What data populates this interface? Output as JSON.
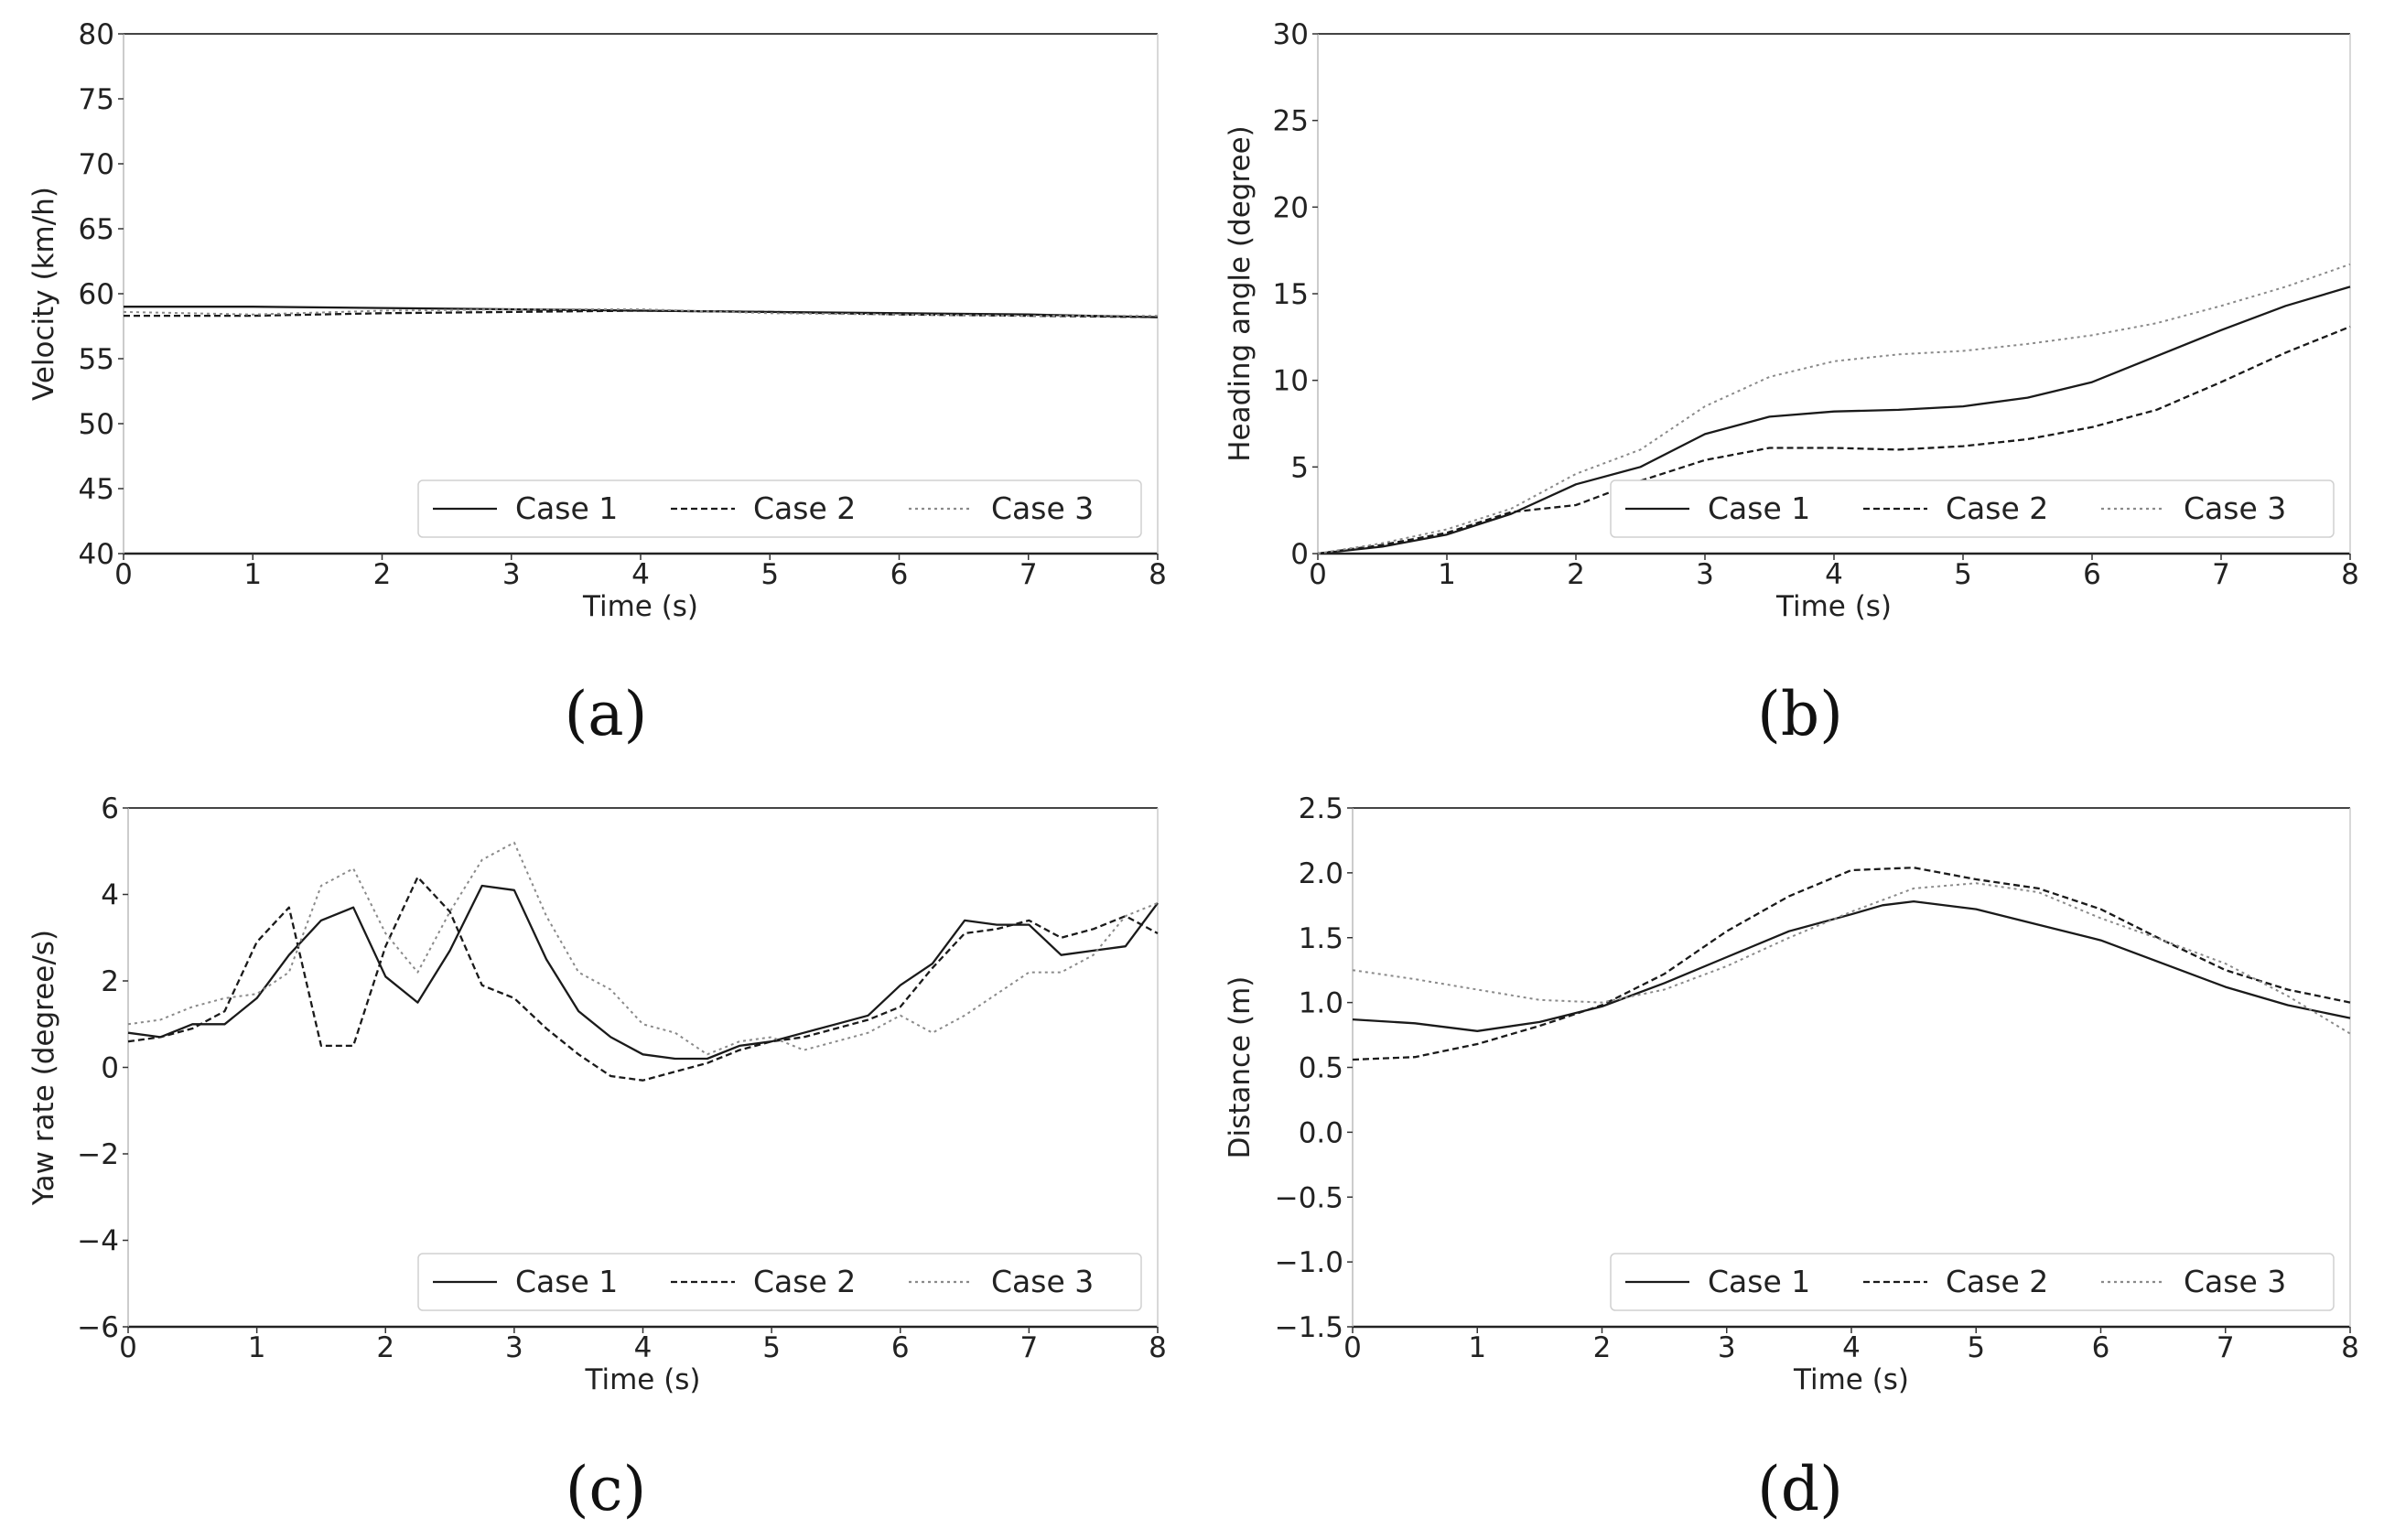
{
  "style": {
    "series_colors": [
      "#1a1a1a",
      "#1a1a1a",
      "#8a8a8a"
    ],
    "series_dashes": [
      "",
      "7,4",
      "3,4"
    ],
    "axis_color": "#333333",
    "grid": false
  },
  "chart_data": [
    {
      "id": "a",
      "caption": "(a)",
      "type": "line",
      "xlabel": "Time (s)",
      "ylabel": "Velocity (km/h)",
      "xlim": [
        0,
        8
      ],
      "ylim": [
        40,
        80
      ],
      "xticks": [
        0,
        1,
        2,
        3,
        4,
        5,
        6,
        7,
        8
      ],
      "yticks": [
        40,
        45,
        50,
        55,
        60,
        65,
        70,
        75,
        80
      ],
      "legend_position": "lower-right",
      "series": [
        {
          "name": "Case 1",
          "x": [
            0,
            1,
            2,
            3,
            4,
            5,
            6,
            7,
            8
          ],
          "values": [
            59.0,
            59.0,
            58.9,
            58.8,
            58.7,
            58.6,
            58.5,
            58.4,
            58.2
          ]
        },
        {
          "name": "Case 2",
          "x": [
            0,
            1,
            2,
            3,
            4,
            5,
            6,
            7,
            8
          ],
          "values": [
            58.3,
            58.3,
            58.5,
            58.6,
            58.7,
            58.6,
            58.4,
            58.3,
            58.2
          ]
        },
        {
          "name": "Case 3",
          "x": [
            0,
            1,
            2,
            3,
            4,
            5,
            6,
            7,
            8
          ],
          "values": [
            58.6,
            58.4,
            58.7,
            58.8,
            58.8,
            58.5,
            58.4,
            58.3,
            58.3
          ]
        }
      ]
    },
    {
      "id": "b",
      "caption": "(b)",
      "type": "line",
      "xlabel": "Time (s)",
      "ylabel": "Heading angle (degree)",
      "xlim": [
        0,
        8
      ],
      "ylim": [
        0,
        30
      ],
      "xticks": [
        0,
        1,
        2,
        3,
        4,
        5,
        6,
        7,
        8
      ],
      "yticks": [
        0,
        5,
        10,
        15,
        20,
        25,
        30
      ],
      "legend_position": "lower-right",
      "series": [
        {
          "name": "Case 1",
          "x": [
            0,
            0.5,
            1,
            1.5,
            2,
            2.5,
            3,
            3.5,
            4,
            4.5,
            5,
            5.5,
            6,
            6.5,
            7,
            7.5,
            8
          ],
          "values": [
            0,
            0.4,
            1.1,
            2.3,
            4.0,
            5.0,
            6.9,
            7.9,
            8.2,
            8.3,
            8.5,
            9.0,
            9.9,
            11.4,
            12.9,
            14.3,
            15.4
          ]
        },
        {
          "name": "Case 2",
          "x": [
            0,
            0.5,
            1,
            1.5,
            2,
            2.5,
            3,
            3.5,
            4,
            4.5,
            5,
            5.5,
            6,
            6.5,
            7,
            7.5,
            8
          ],
          "values": [
            0,
            0.5,
            1.2,
            2.4,
            2.8,
            4.2,
            5.4,
            6.1,
            6.1,
            6.0,
            6.2,
            6.6,
            7.3,
            8.3,
            9.9,
            11.6,
            13.1
          ]
        },
        {
          "name": "Case 3",
          "x": [
            0,
            0.5,
            1,
            1.5,
            2,
            2.5,
            3,
            3.5,
            4,
            4.5,
            5,
            5.5,
            6,
            6.5,
            7,
            7.5,
            8
          ],
          "values": [
            0,
            0.6,
            1.4,
            2.6,
            4.6,
            6.0,
            8.5,
            10.2,
            11.1,
            11.5,
            11.7,
            12.1,
            12.6,
            13.3,
            14.3,
            15.4,
            16.7
          ]
        }
      ]
    },
    {
      "id": "c",
      "caption": "(c)",
      "type": "line",
      "xlabel": "Time (s)",
      "ylabel": "Yaw rate (degree/s)",
      "xlim": [
        0,
        8
      ],
      "ylim": [
        -6,
        6
      ],
      "xticks": [
        0,
        1,
        2,
        3,
        4,
        5,
        6,
        7,
        8
      ],
      "ytick_labels": [
        "−6",
        "−4",
        "−2",
        "0",
        "2",
        "4",
        "6"
      ],
      "yticks": [
        -6,
        -4,
        -2,
        0,
        2,
        4,
        6
      ],
      "legend_position": "lower-right",
      "series": [
        {
          "name": "Case 1",
          "x": [
            0,
            0.25,
            0.5,
            0.75,
            1,
            1.25,
            1.5,
            1.75,
            2,
            2.25,
            2.5,
            2.75,
            3,
            3.25,
            3.5,
            3.75,
            4,
            4.25,
            4.5,
            4.75,
            5,
            5.25,
            5.5,
            5.75,
            6,
            6.25,
            6.5,
            6.75,
            7,
            7.25,
            7.5,
            7.75,
            8
          ],
          "values": [
            0.8,
            0.7,
            1.0,
            1.0,
            1.6,
            2.6,
            3.4,
            3.7,
            2.1,
            1.5,
            2.7,
            4.2,
            4.1,
            2.5,
            1.3,
            0.7,
            0.3,
            0.2,
            0.2,
            0.5,
            0.6,
            0.8,
            1.0,
            1.2,
            1.9,
            2.4,
            3.4,
            3.3,
            3.3,
            2.6,
            2.7,
            2.8,
            3.8
          ]
        },
        {
          "name": "Case 2",
          "x": [
            0,
            0.25,
            0.5,
            0.75,
            1,
            1.25,
            1.5,
            1.75,
            2,
            2.25,
            2.5,
            2.75,
            3,
            3.25,
            3.5,
            3.75,
            4,
            4.25,
            4.5,
            4.75,
            5,
            5.25,
            5.5,
            5.75,
            6,
            6.25,
            6.5,
            6.75,
            7,
            7.25,
            7.5,
            7.75,
            8
          ],
          "values": [
            0.6,
            0.7,
            0.9,
            1.3,
            2.9,
            3.7,
            0.5,
            0.5,
            2.8,
            4.4,
            3.6,
            1.9,
            1.6,
            0.9,
            0.3,
            -0.2,
            -0.3,
            -0.1,
            0.1,
            0.4,
            0.6,
            0.7,
            0.9,
            1.1,
            1.4,
            2.3,
            3.1,
            3.2,
            3.4,
            3.0,
            3.2,
            3.5,
            3.1
          ]
        },
        {
          "name": "Case 3",
          "x": [
            0,
            0.25,
            0.5,
            0.75,
            1,
            1.25,
            1.5,
            1.75,
            2,
            2.25,
            2.5,
            2.75,
            3,
            3.25,
            3.5,
            3.75,
            4,
            4.25,
            4.5,
            4.75,
            5,
            5.25,
            5.5,
            5.75,
            6,
            6.25,
            6.5,
            6.75,
            7,
            7.25,
            7.5,
            7.75,
            8
          ],
          "values": [
            1.0,
            1.1,
            1.4,
            1.6,
            1.7,
            2.2,
            4.2,
            4.6,
            3.1,
            2.2,
            3.6,
            4.8,
            5.2,
            3.5,
            2.2,
            1.8,
            1.0,
            0.8,
            0.3,
            0.6,
            0.7,
            0.4,
            0.6,
            0.8,
            1.2,
            0.8,
            1.2,
            1.7,
            2.2,
            2.2,
            2.6,
            3.5,
            3.8
          ]
        }
      ]
    },
    {
      "id": "d",
      "caption": "(d)",
      "type": "line",
      "xlabel": "Time (s)",
      "ylabel": "Distance (m)",
      "xlim": [
        0,
        8
      ],
      "ylim": [
        -1.5,
        2.5
      ],
      "xticks": [
        0,
        1,
        2,
        3,
        4,
        5,
        6,
        7,
        8
      ],
      "ytick_labels": [
        "−1.5",
        "−1.0",
        "−0.5",
        "0.0",
        "0.5",
        "1.0",
        "1.5",
        "2.0",
        "2.5"
      ],
      "yticks": [
        -1.5,
        -1.0,
        -0.5,
        0.0,
        0.5,
        1.0,
        1.5,
        2.0,
        2.5
      ],
      "legend_position": "lower-right",
      "series": [
        {
          "name": "Case 1",
          "x": [
            0,
            0.5,
            1,
            1.5,
            2,
            2.5,
            3,
            3.5,
            4,
            4.25,
            4.5,
            5,
            5.5,
            6,
            6.5,
            7,
            7.5,
            8
          ],
          "values": [
            0.87,
            0.84,
            0.78,
            0.85,
            0.97,
            1.15,
            1.35,
            1.55,
            1.68,
            1.75,
            1.78,
            1.72,
            1.6,
            1.48,
            1.3,
            1.12,
            0.98,
            0.88
          ]
        },
        {
          "name": "Case 2",
          "x": [
            0,
            0.5,
            1,
            1.5,
            2,
            2.5,
            3,
            3.5,
            4,
            4.5,
            5,
            5.5,
            6,
            6.5,
            7,
            7.5,
            8
          ],
          "values": [
            0.56,
            0.58,
            0.68,
            0.82,
            0.98,
            1.22,
            1.55,
            1.82,
            2.02,
            2.04,
            1.95,
            1.88,
            1.72,
            1.48,
            1.25,
            1.1,
            1.0
          ]
        },
        {
          "name": "Case 3",
          "x": [
            0,
            0.5,
            1,
            1.5,
            2,
            2.5,
            3,
            3.5,
            4,
            4.5,
            5,
            5.5,
            6,
            6.5,
            7,
            7.5,
            8
          ],
          "values": [
            1.25,
            1.18,
            1.1,
            1.02,
            1.0,
            1.1,
            1.28,
            1.5,
            1.7,
            1.88,
            1.92,
            1.85,
            1.65,
            1.48,
            1.3,
            1.05,
            0.76
          ]
        }
      ]
    }
  ]
}
